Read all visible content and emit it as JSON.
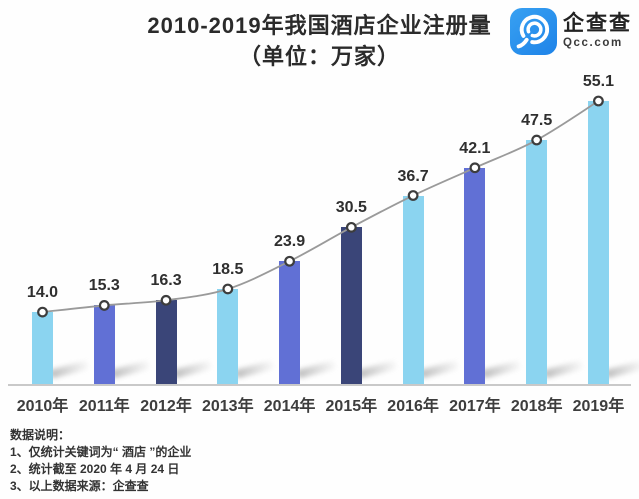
{
  "header": {
    "title_line1": "2010-2019年我国酒店企业注册量",
    "title_line2": "（单位：万家）",
    "logo": {
      "name": "企查查",
      "domain": "Qcc.com",
      "icon": "qcc-magnifier-icon",
      "brand_color": "#2490ea"
    }
  },
  "chart_data": {
    "type": "bar",
    "title": "2010-2019年我国酒店企业注册量",
    "subtitle": "（单位：万家）",
    "unit": "万家",
    "categories": [
      "2010年",
      "2011年",
      "2012年",
      "2013年",
      "2014年",
      "2015年",
      "2016年",
      "2017年",
      "2018年",
      "2019年"
    ],
    "values": [
      14.0,
      15.3,
      16.3,
      18.5,
      23.9,
      30.5,
      36.7,
      42.1,
      47.5,
      55.1
    ],
    "value_labels": [
      "14.0",
      "15.3",
      "16.3",
      "18.5",
      "23.9",
      "30.5",
      "36.7",
      "42.1",
      "47.5",
      "55.1"
    ],
    "ylim": [
      0,
      60
    ],
    "grid": false,
    "legend": null,
    "overlay_line": true,
    "palette": {
      "cyan": "#8bd4f0",
      "periwinkle": "#6170d5",
      "navy": "#3a4578"
    },
    "bar_colors": [
      "cyan",
      "periwinkle",
      "navy",
      "cyan",
      "periwinkle",
      "navy",
      "cyan",
      "periwinkle",
      "cyan",
      "cyan"
    ],
    "line_color": "#9a9a9a",
    "marker_fill": "#ffffff",
    "marker_stroke": "#3d3d3d",
    "axis_color": "#c9c9c9",
    "label_color": "#2f2f2f"
  },
  "notes": {
    "heading": "数据说明：",
    "items": [
      "1、仅统计关键词为“ 酒店 ”的企业",
      "2、统计截至 2020 年 4 月 24 日",
      "3、以上数据来源：企查查"
    ]
  }
}
